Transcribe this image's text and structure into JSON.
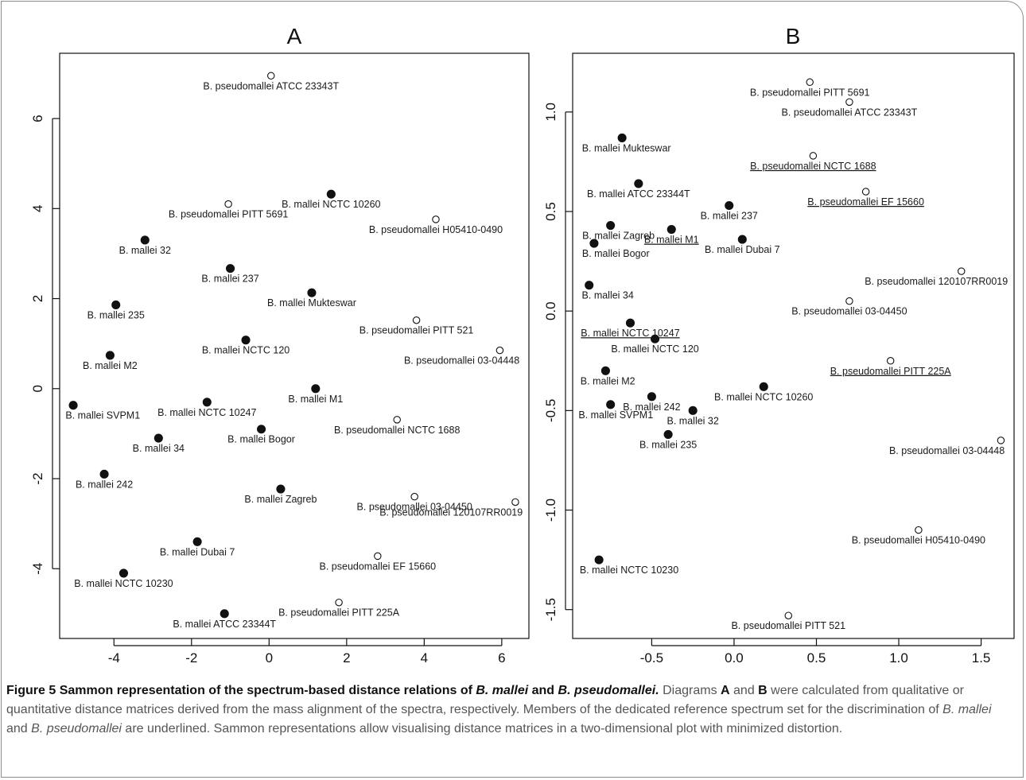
{
  "chart_data": [
    {
      "type": "scatter",
      "title": "A",
      "xlim": [
        -5.4,
        6.7
      ],
      "ylim": [
        -5.55,
        7.45
      ],
      "xticks": [
        -4,
        -2,
        0,
        2,
        4,
        6
      ],
      "yticks": [
        -4,
        -2,
        0,
        2,
        4,
        6
      ],
      "legend": "none",
      "points": [
        {
          "label": "B. pseudomallei ATCC 23343T",
          "x": 0.05,
          "y": 6.95,
          "filled": false,
          "underlined": false
        },
        {
          "label": "B. pseudomallei PITT 5691",
          "x": -1.05,
          "y": 4.1,
          "filled": false,
          "underlined": false
        },
        {
          "label": "B. mallei NCTC 10260",
          "x": 1.6,
          "y": 4.32,
          "filled": true,
          "underlined": false
        },
        {
          "label": "B. pseudomallei H05410-0490",
          "x": 4.3,
          "y": 3.76,
          "filled": false,
          "underlined": false
        },
        {
          "label": "B. mallei 32",
          "x": -3.2,
          "y": 3.3,
          "filled": true,
          "underlined": false
        },
        {
          "label": "B. mallei 237",
          "x": -1.0,
          "y": 2.67,
          "filled": true,
          "underlined": false
        },
        {
          "label": "B. mallei Mukteswar",
          "x": 1.1,
          "y": 2.13,
          "filled": true,
          "underlined": false
        },
        {
          "label": "B. mallei 235",
          "x": -3.95,
          "y": 1.86,
          "filled": true,
          "underlined": false
        },
        {
          "label": "B. pseudomallei PITT 521",
          "x": 3.8,
          "y": 1.52,
          "filled": false,
          "underlined": false
        },
        {
          "label": "B. mallei NCTC 120",
          "x": -0.6,
          "y": 1.08,
          "filled": true,
          "underlined": false
        },
        {
          "label": "B. pseudomallei 03-04448",
          "x": 5.95,
          "y": 0.85,
          "filled": false,
          "underlined": false
        },
        {
          "label": "B. mallei M2",
          "x": -4.1,
          "y": 0.74,
          "filled": true,
          "underlined": false
        },
        {
          "label": "B. mallei M1",
          "x": 1.2,
          "y": 0.0,
          "filled": true,
          "underlined": false
        },
        {
          "label": "B. mallei SVPM1",
          "x": -5.05,
          "y": -0.37,
          "filled": true,
          "underlined": false
        },
        {
          "label": "B. mallei NCTC 10247",
          "x": -1.6,
          "y": -0.3,
          "filled": true,
          "underlined": false
        },
        {
          "label": "B. pseudomallei NCTC 1688",
          "x": 3.3,
          "y": -0.69,
          "filled": false,
          "underlined": false
        },
        {
          "label": "B. mallei Bogor",
          "x": -0.2,
          "y": -0.9,
          "filled": true,
          "underlined": false
        },
        {
          "label": "B. mallei 34",
          "x": -2.85,
          "y": -1.1,
          "filled": true,
          "underlined": false
        },
        {
          "label": "B. mallei 242",
          "x": -4.25,
          "y": -1.9,
          "filled": true,
          "underlined": false
        },
        {
          "label": "B. mallei Zagreb",
          "x": 0.3,
          "y": -2.23,
          "filled": true,
          "underlined": false
        },
        {
          "label": "B. pseudomallei 03-04450",
          "x": 3.75,
          "y": -2.4,
          "filled": false,
          "underlined": false
        },
        {
          "label": "B. pseudomallei 120107RR0019",
          "x": 6.35,
          "y": -2.52,
          "filled": false,
          "underlined": false
        },
        {
          "label": "B. mallei Dubai 7",
          "x": -1.85,
          "y": -3.4,
          "filled": true,
          "underlined": false
        },
        {
          "label": "B. pseudomallei EF 15660",
          "x": 2.8,
          "y": -3.72,
          "filled": false,
          "underlined": false
        },
        {
          "label": "B. mallei NCTC 10230",
          "x": -3.75,
          "y": -4.1,
          "filled": true,
          "underlined": false
        },
        {
          "label": "B. pseudomallei PITT 225A",
          "x": 1.8,
          "y": -4.75,
          "filled": false,
          "underlined": false
        },
        {
          "label": "B. mallei ATCC 23344T",
          "x": -1.15,
          "y": -5.0,
          "filled": true,
          "underlined": false
        }
      ]
    },
    {
      "type": "scatter",
      "title": "B",
      "xlim": [
        -0.98,
        1.7
      ],
      "ylim": [
        -1.645,
        1.295
      ],
      "xticks": [
        -0.5,
        0.0,
        0.5,
        1.0,
        1.5
      ],
      "yticks": [
        -1.5,
        -1.0,
        -0.5,
        0.0,
        0.5,
        1.0
      ],
      "xticklabels": [
        "-0.5",
        "0.0",
        "0.5",
        "1.0",
        "1.5"
      ],
      "yticklabels": [
        "-1.5",
        "-1.0",
        "-0.5",
        "0.0",
        "0.5",
        "1.0"
      ],
      "legend": "none",
      "points": [
        {
          "label": "B. pseudomallei PITT 5691",
          "x": 0.46,
          "y": 1.15,
          "filled": false,
          "underlined": false
        },
        {
          "label": "B. pseudomallei ATCC 23343T",
          "x": 0.7,
          "y": 1.05,
          "filled": false,
          "underlined": false
        },
        {
          "label": "B. mallei Mukteswar",
          "x": -0.68,
          "y": 0.87,
          "filled": true,
          "underlined": false
        },
        {
          "label": "B. pseudomallei NCTC 1688",
          "x": 0.48,
          "y": 0.78,
          "filled": false,
          "underlined": true
        },
        {
          "label": "B. mallei ATCC 23344T",
          "x": -0.58,
          "y": 0.64,
          "filled": true,
          "underlined": false
        },
        {
          "label": "B. pseudomallei EF 15660",
          "x": 0.8,
          "y": 0.6,
          "filled": false,
          "underlined": true
        },
        {
          "label": "B. mallei 237",
          "x": -0.03,
          "y": 0.53,
          "filled": true,
          "underlined": false
        },
        {
          "label": "B. mallei Zagreb",
          "x": -0.75,
          "y": 0.43,
          "filled": true,
          "underlined": false
        },
        {
          "label": "B. mallei M1",
          "x": -0.38,
          "y": 0.41,
          "filled": true,
          "underlined": true
        },
        {
          "label": "B. mallei Bogor",
          "x": -0.85,
          "y": 0.34,
          "filled": true,
          "underlined": false
        },
        {
          "label": "B. mallei Dubai 7",
          "x": 0.05,
          "y": 0.36,
          "filled": true,
          "underlined": false
        },
        {
          "label": "B. pseudomallei 120107RR0019",
          "x": 1.38,
          "y": 0.2,
          "filled": false,
          "underlined": false
        },
        {
          "label": "B. mallei 34",
          "x": -0.88,
          "y": 0.13,
          "filled": true,
          "underlined": false
        },
        {
          "label": "B. pseudomallei 03-04450",
          "x": 0.7,
          "y": 0.05,
          "filled": false,
          "underlined": false
        },
        {
          "label": "B. mallei NCTC 10247",
          "x": -0.63,
          "y": -0.06,
          "filled": true,
          "underlined": true
        },
        {
          "label": "B. mallei NCTC 120",
          "x": -0.48,
          "y": -0.14,
          "filled": true,
          "underlined": false
        },
        {
          "label": "B. pseudomallei PITT 225A",
          "x": 0.95,
          "y": -0.25,
          "filled": false,
          "underlined": true
        },
        {
          "label": "B. mallei M2",
          "x": -0.78,
          "y": -0.3,
          "filled": true,
          "underlined": false
        },
        {
          "label": "B. mallei NCTC 10260",
          "x": 0.18,
          "y": -0.38,
          "filled": true,
          "underlined": false
        },
        {
          "label": "B. mallei 242",
          "x": -0.5,
          "y": -0.43,
          "filled": true,
          "underlined": false
        },
        {
          "label": "B. mallei SVPM1",
          "x": -0.75,
          "y": -0.47,
          "filled": true,
          "underlined": false
        },
        {
          "label": "B. mallei 32",
          "x": -0.25,
          "y": -0.5,
          "filled": true,
          "underlined": false
        },
        {
          "label": "B. mallei 235",
          "x": -0.4,
          "y": -0.62,
          "filled": true,
          "underlined": false
        },
        {
          "label": "B. pseudomallei 03-04448",
          "x": 1.62,
          "y": -0.65,
          "filled": false,
          "underlined": false
        },
        {
          "label": "B. pseudomallei H05410-0490",
          "x": 1.12,
          "y": -1.1,
          "filled": false,
          "underlined": false
        },
        {
          "label": "B. mallei NCTC 10230",
          "x": -0.82,
          "y": -1.25,
          "filled": true,
          "underlined": false
        },
        {
          "label": "B. pseudomallei PITT 521",
          "x": 0.33,
          "y": -1.53,
          "filled": false,
          "underlined": false
        }
      ]
    }
  ],
  "caption": {
    "figure_label": "Figure 5",
    "title_pre": "Sammon representation of the spectrum-based distance relations of ",
    "title_em1": "B. mallei",
    "title_mid": " and ",
    "title_em2": "B. pseudomallei.",
    "body_1": " Diagrams ",
    "body_a": "A",
    "body_2": " and ",
    "body_b": "B",
    "body_3": " were calculated from qualitative or quantitative distance matrices derived from the mass alignment of the spectra, respectively. Members of the dedicated reference spectrum set for the discrimination of ",
    "body_em1": "B. mallei",
    "body_4": " and ",
    "body_em2": "B. pseudomallei",
    "body_5": " are underlined. Sammon representations allow visualising distance matrices in a two-dimensional plot with minimized distortion."
  }
}
